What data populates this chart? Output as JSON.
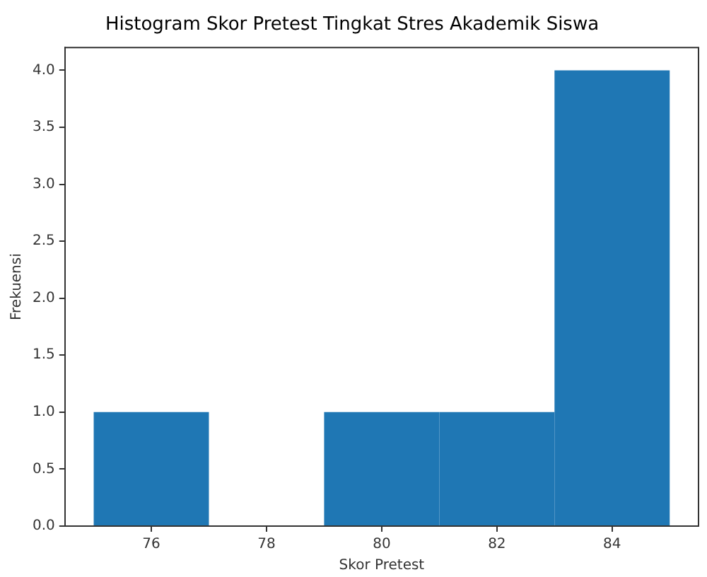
{
  "chart_data": {
    "type": "histogram",
    "title": "Histogram Skor Pretest Tingkat Stres Akademik Siswa",
    "xlabel": "Skor Pretest",
    "ylabel": "Frekuensi",
    "bins": [
      75,
      77,
      79,
      81,
      83,
      85
    ],
    "values": [
      1,
      0,
      1,
      1,
      4
    ],
    "color": "#1f77b4",
    "xlim": [
      74.5,
      85.5
    ],
    "xticks": [
      76,
      78,
      80,
      82,
      84
    ],
    "ylim": [
      0,
      4.2
    ],
    "yticks": [
      {
        "value": 0,
        "label": "0.0"
      },
      {
        "value": 0.5,
        "label": "0.5"
      },
      {
        "value": 1,
        "label": "1.0"
      },
      {
        "value": 1.5,
        "label": "1.5"
      },
      {
        "value": 2,
        "label": "2.0"
      },
      {
        "value": 2.5,
        "label": "2.5"
      },
      {
        "value": 3,
        "label": "3.0"
      },
      {
        "value": 3.5,
        "label": "3.5"
      },
      {
        "value": 4,
        "label": "4.0"
      }
    ],
    "grid": false,
    "legend": false
  }
}
